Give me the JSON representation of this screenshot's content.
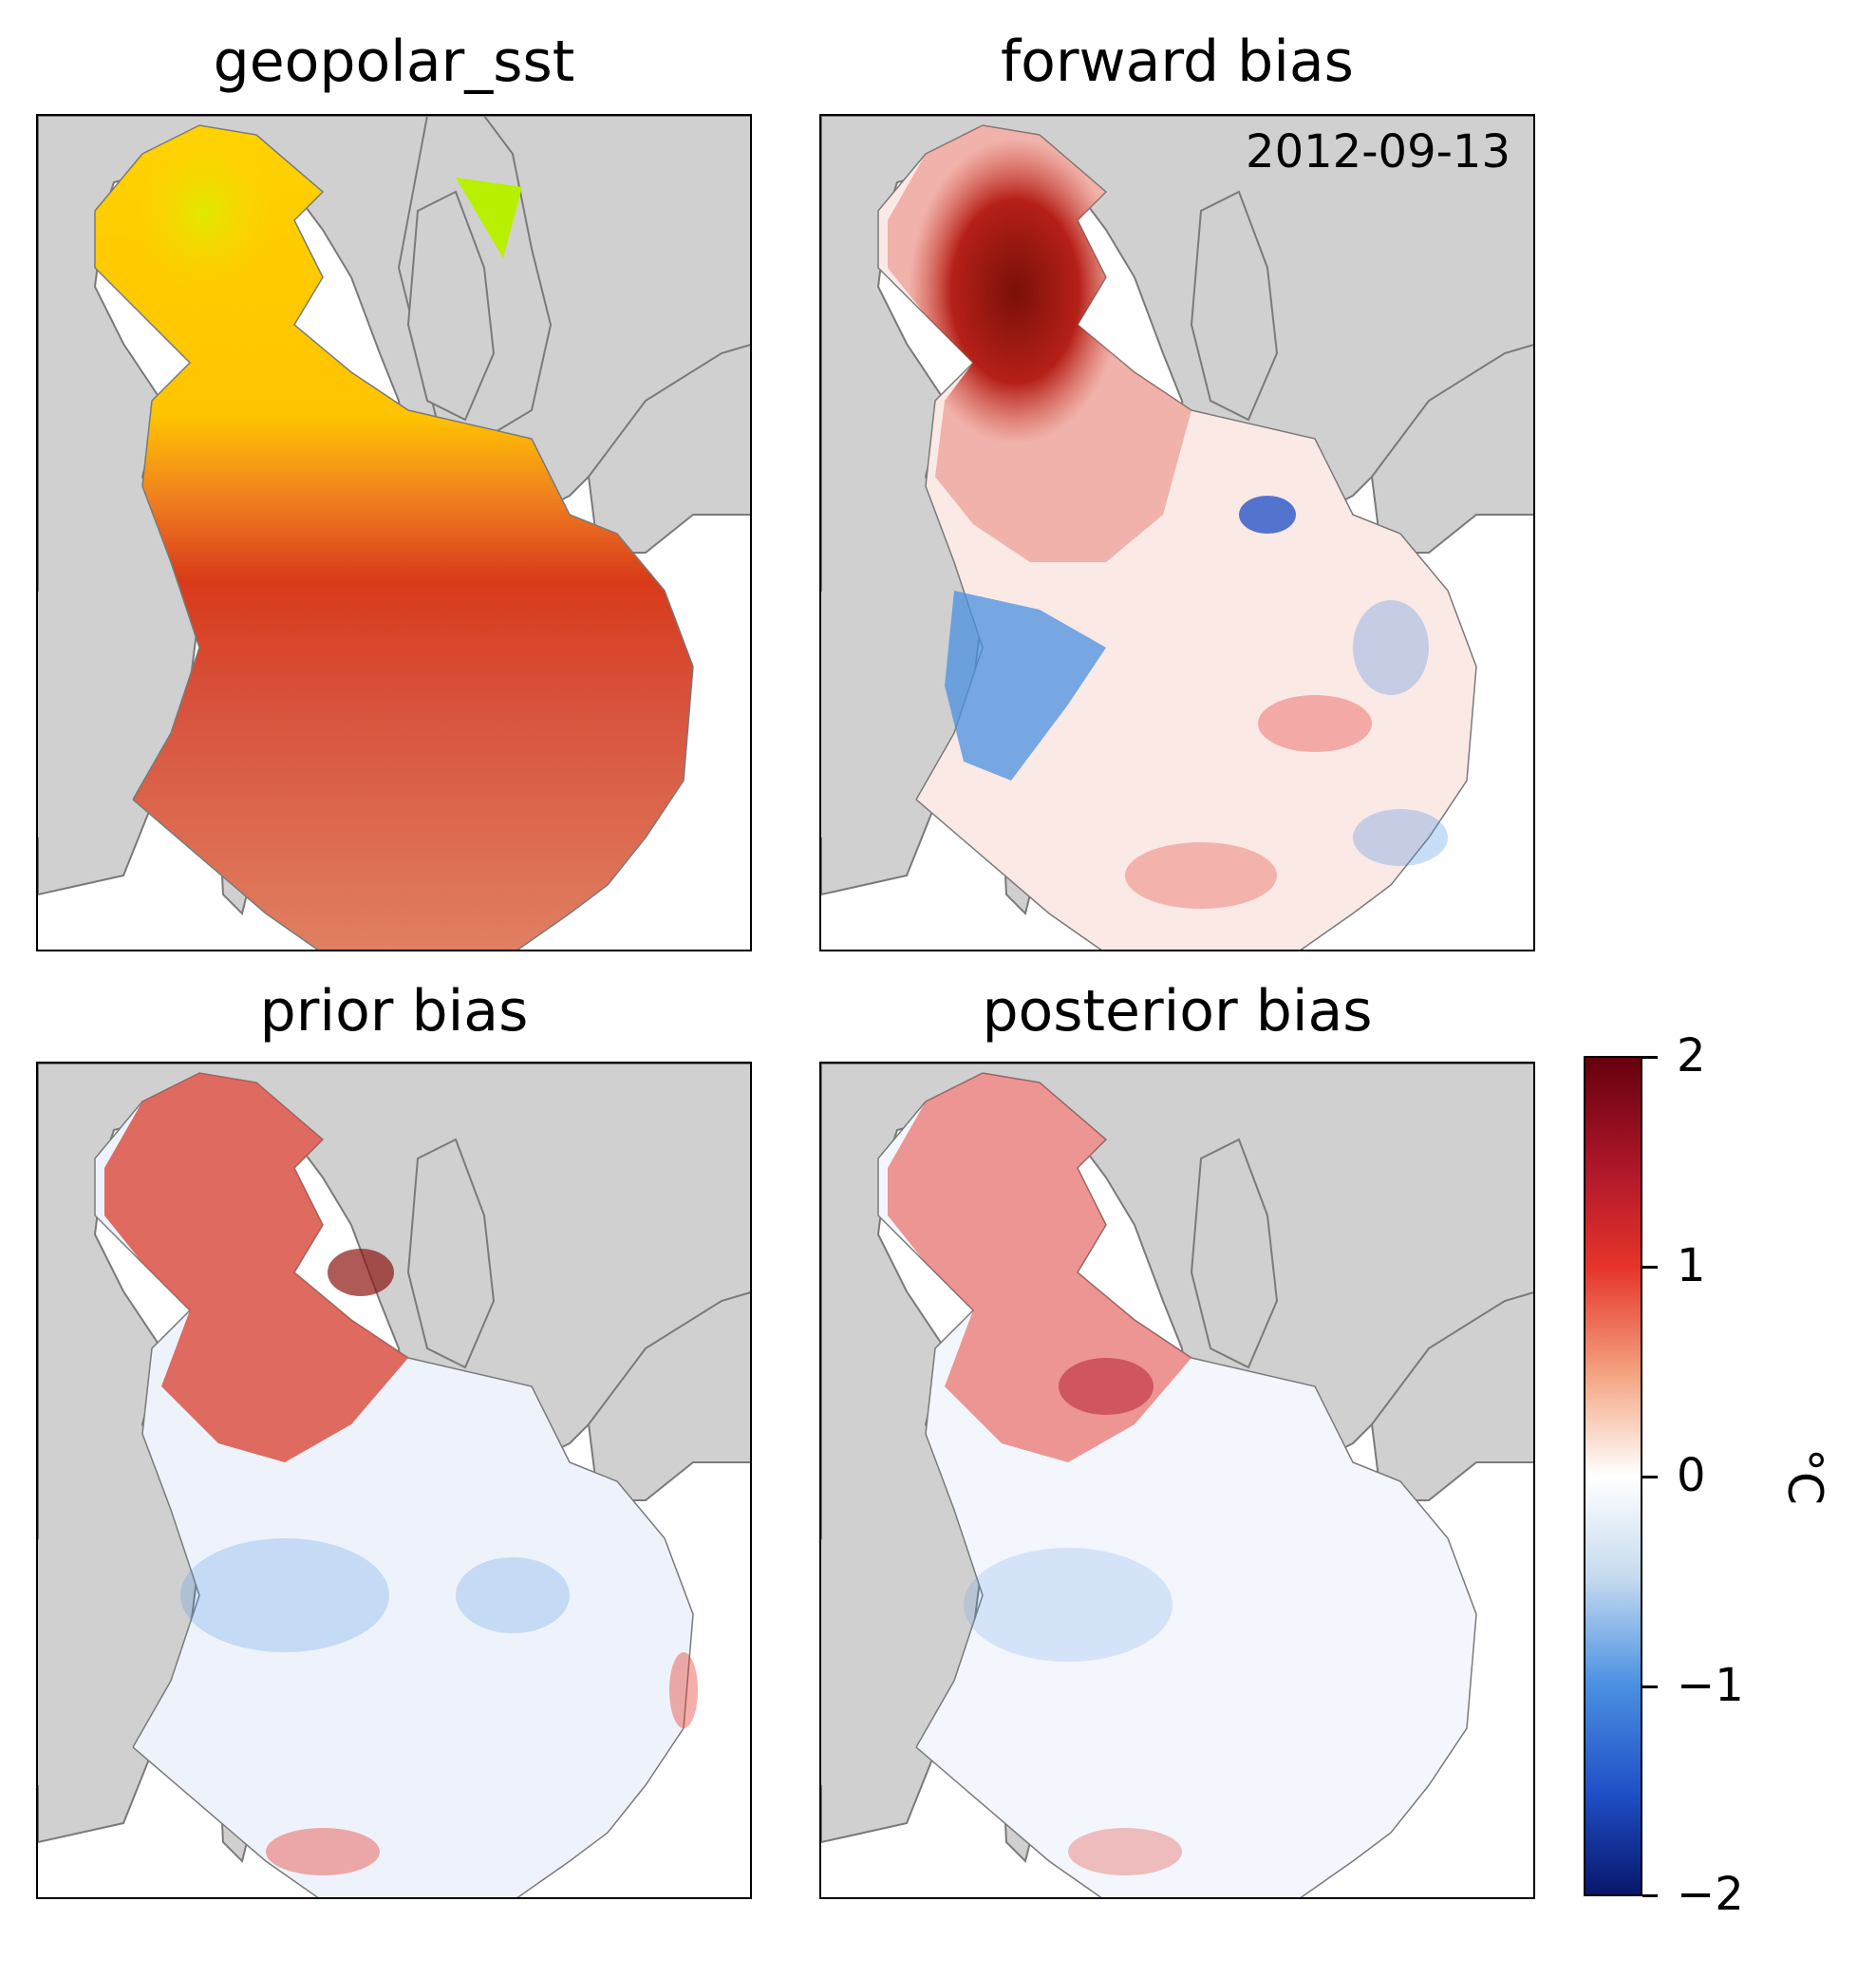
{
  "panels": [
    {
      "id": "geopolar",
      "title": "geopolar_sst"
    },
    {
      "id": "forward",
      "title": "forward bias",
      "date": "2012-09-13"
    },
    {
      "id": "prior",
      "title": "prior bias"
    },
    {
      "id": "posterior",
      "title": "posterior bias"
    }
  ],
  "colorbar": {
    "unit": "°C",
    "ticks": [
      "2",
      "1",
      "0",
      "−1",
      "−2"
    ],
    "range": [
      -2,
      2
    ],
    "colors": {
      "max": "#67000d",
      "mid": "#ffffff",
      "min": "#08166b"
    }
  },
  "colors": {
    "land": "#d0d0d0",
    "coast": "#7a7a7a",
    "warm": "#d9473a",
    "hot": "#8b1510",
    "cool": "#4a90e2",
    "sst_yellow": "#ffd200",
    "sst_orange": "#f07820",
    "sst_red": "#d8523c",
    "sst_green": "#b8f000"
  }
}
